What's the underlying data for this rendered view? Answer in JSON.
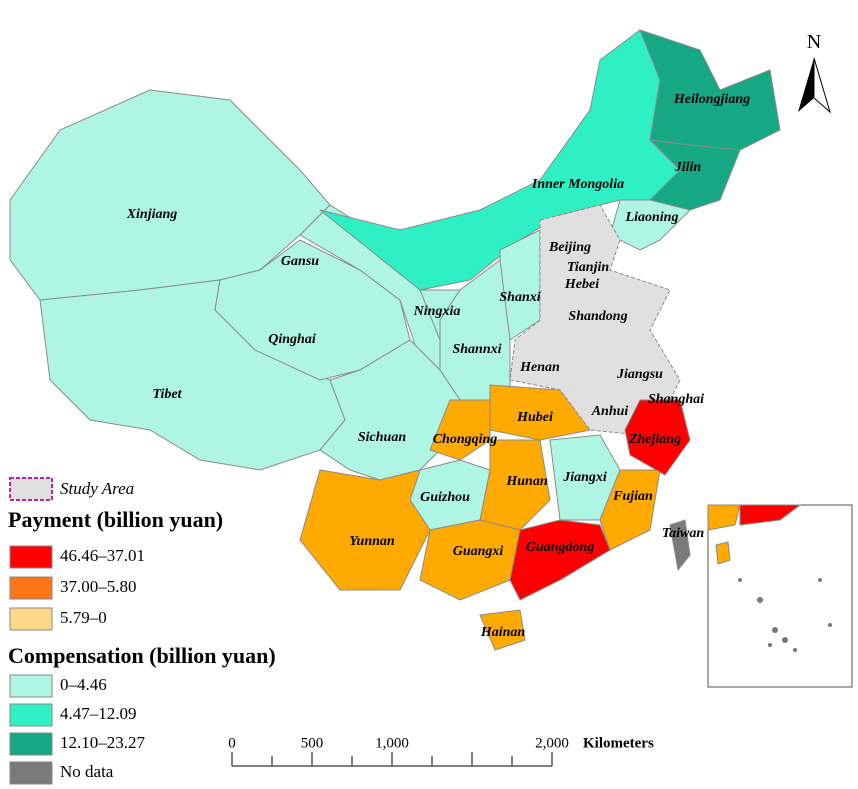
{
  "map": {
    "north": "N",
    "provinces": [
      "Heilongjiang",
      "Jilin",
      "Inner Mongolia",
      "Liaoning",
      "Xinjiang",
      "Gansu",
      "Beijing",
      "Tianjin",
      "Hebei",
      "Ningxia",
      "Shanxi",
      "Qinghai",
      "Shandong",
      "Shannxi",
      "Henan",
      "Jiangsu",
      "Tibet",
      "Shanghai",
      "Anhui",
      "Hubei",
      "Sichuan",
      "Chongqing",
      "Zhejiang",
      "Jiangxi",
      "Hunan",
      "Fujian",
      "Guizhou",
      "Taiwan",
      "Yunnan",
      "Guangxi",
      "Guangdong",
      "Hainan"
    ],
    "legend": {
      "study_area": "Study Area",
      "payment_title": "Payment (billion yuan)",
      "payment": [
        {
          "label": "46.46–37.01",
          "color": "#ff0000"
        },
        {
          "label": "37.00–5.80",
          "color": "#ff7518"
        },
        {
          "label": "5.79–0",
          "color": "#ffd88a"
        }
      ],
      "compensation_title": "Compensation (billion yuan)",
      "compensation": [
        {
          "label": "0–4.46",
          "color": "#aef5e3"
        },
        {
          "label": "4.47–12.09",
          "color": "#2ff0c4"
        },
        {
          "label": "12.10–23.27",
          "color": "#16a885"
        }
      ],
      "no_data": {
        "label": "No data",
        "color": "#7a7a7a"
      }
    },
    "scale_bar": {
      "labels": [
        "0",
        "500",
        "1,000",
        "2,000"
      ],
      "unit": "Kilometers"
    }
  }
}
